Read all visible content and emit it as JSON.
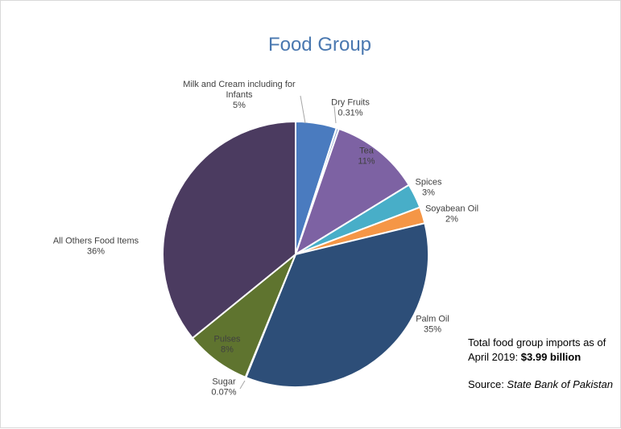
{
  "chart_data": {
    "type": "pie",
    "title": "Food Group",
    "slices": [
      {
        "label": "Milk and Cream including for Infants",
        "label_lines": [
          "Milk and Cream including for",
          "Infants"
        ],
        "pct_text": "5%",
        "value": 5,
        "color": "#4a7bbf"
      },
      {
        "label": "Dry Fruits",
        "label_lines": [
          "Dry Fruits"
        ],
        "pct_text": "0.31%",
        "value": 0.31,
        "color": "#8fa8cf"
      },
      {
        "label": "Tea",
        "label_lines": [
          "Tea"
        ],
        "pct_text": "11%",
        "value": 11,
        "color": "#7d62a3"
      },
      {
        "label": "Spices",
        "label_lines": [
          "Spices"
        ],
        "pct_text": "3%",
        "value": 3,
        "color": "#48aec8"
      },
      {
        "label": "Soyabean Oil",
        "label_lines": [
          "Soyabean Oil"
        ],
        "pct_text": "2%",
        "value": 2,
        "color": "#f59646"
      },
      {
        "label": "Palm Oil",
        "label_lines": [
          "Palm Oil"
        ],
        "pct_text": "35%",
        "value": 35,
        "color": "#2d4e78"
      },
      {
        "label": "Sugar",
        "label_lines": [
          "Sugar"
        ],
        "pct_text": "0.07%",
        "value": 0.07,
        "color": "#a9a9a9"
      },
      {
        "label": "Pulses",
        "label_lines": [
          "Pulses"
        ],
        "pct_text": "8%",
        "value": 8,
        "color": "#5f742f"
      },
      {
        "label": "All Others Food Items",
        "label_lines": [
          "All Others Food Items"
        ],
        "pct_text": "36%",
        "value": 36,
        "color": "#4b3b60"
      }
    ],
    "legend": "none"
  },
  "note": {
    "total_prefix": "Total food group imports as of April 2019: ",
    "total_value": "$3.99 billion",
    "source_prefix": "Source: ",
    "source_name": "State Bank of Pakistan"
  }
}
